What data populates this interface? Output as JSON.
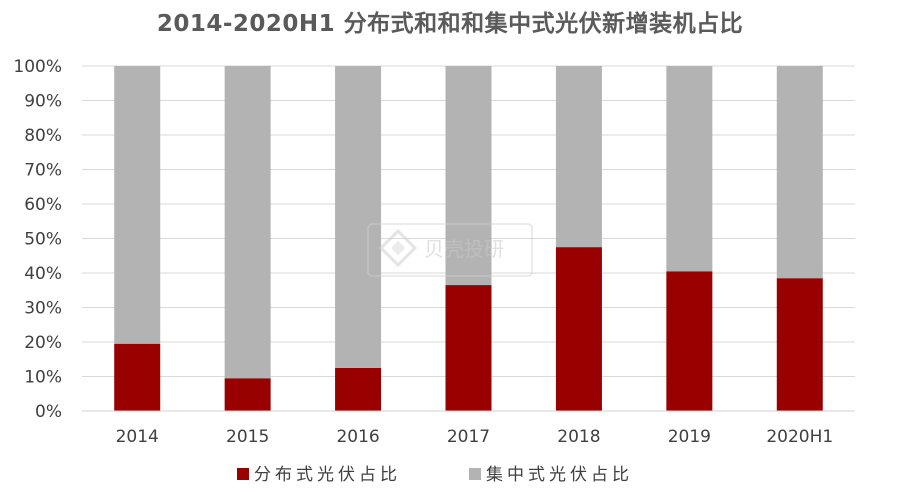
{
  "chart_data": {
    "type": "bar",
    "stacked": true,
    "title": "2014-2020H1 分布式和和和集中式光伏新增装机占比",
    "categories": [
      "2014",
      "2015",
      "2016",
      "2017",
      "2018",
      "2019",
      "2020H1"
    ],
    "series": [
      {
        "name": "分布式光伏占比",
        "values": [
          19.5,
          9.5,
          12.5,
          36.5,
          47.5,
          40.5,
          38.5
        ],
        "color": "#990000"
      },
      {
        "name": "集中式光伏占比",
        "values": [
          80.5,
          90.5,
          87.5,
          63.5,
          52.5,
          59.5,
          61.5
        ],
        "color": "#b3b3b3"
      }
    ],
    "ylim": [
      0,
      100
    ],
    "yticks": [
      "0%",
      "10%",
      "20%",
      "30%",
      "40%",
      "50%",
      "60%",
      "70%",
      "80%",
      "90%",
      "100%"
    ],
    "grid": true,
    "legend_position": "bottom",
    "xlabel": "",
    "ylabel": ""
  },
  "watermark": {
    "brand": "贝壳投研",
    "icon": "diamond-logo-icon"
  }
}
